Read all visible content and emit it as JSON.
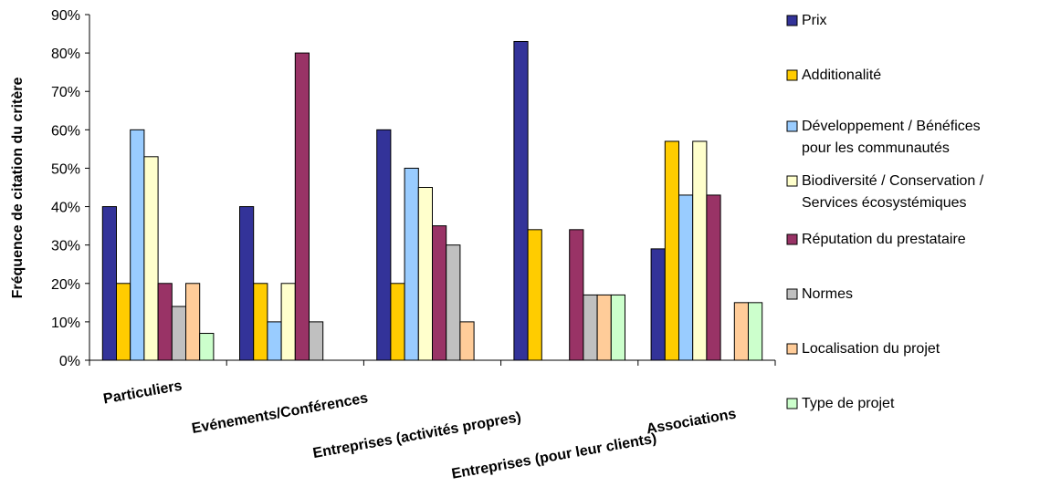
{
  "chart_data": {
    "type": "bar",
    "title": "",
    "xlabel": "",
    "ylabel": "Fréquence de citation du critère",
    "ylim": [
      0,
      90
    ],
    "yticks": [
      "0%",
      "10%",
      "20%",
      "30%",
      "40%",
      "50%",
      "60%",
      "70%",
      "80%",
      "90%"
    ],
    "grid": false,
    "legend_position": "right",
    "categories": [
      "Particuliers",
      "Evénements/Conférences",
      "Entreprises (activités propres)",
      "Entreprises (pour leur clients)",
      "Associations"
    ],
    "series": [
      {
        "name": "Prix",
        "color": "#333399",
        "values": [
          40,
          40,
          60,
          83,
          29
        ]
      },
      {
        "name": "Additionalité",
        "color": "#FFCC00",
        "values": [
          20,
          20,
          20,
          34,
          57
        ]
      },
      {
        "name": "Développement / Bénéfices pour les communautés",
        "legend_lines": [
          "Développement / Bénéfices",
          "pour les communautés"
        ],
        "color": "#99CCFF",
        "values": [
          60,
          10,
          50,
          0,
          43
        ]
      },
      {
        "name": "Biodiversité / Conservation / Services écosystémiques",
        "legend_lines": [
          "Biodiversité / Conservation /",
          "Services écosystémiques"
        ],
        "color": "#FFFFCC",
        "values": [
          53,
          20,
          45,
          0,
          57
        ]
      },
      {
        "name": "Réputation du prestataire",
        "color": "#993366",
        "values": [
          20,
          80,
          35,
          34,
          43
        ]
      },
      {
        "name": "Normes",
        "color": "#C0C0C0",
        "values": [
          14,
          10,
          30,
          17,
          0
        ]
      },
      {
        "name": "Localisation du projet",
        "color": "#FFCC99",
        "values": [
          20,
          0,
          10,
          17,
          15
        ]
      },
      {
        "name": "Type de projet",
        "color": "#CCFFCC",
        "values": [
          7,
          0,
          0,
          17,
          15
        ]
      }
    ]
  }
}
